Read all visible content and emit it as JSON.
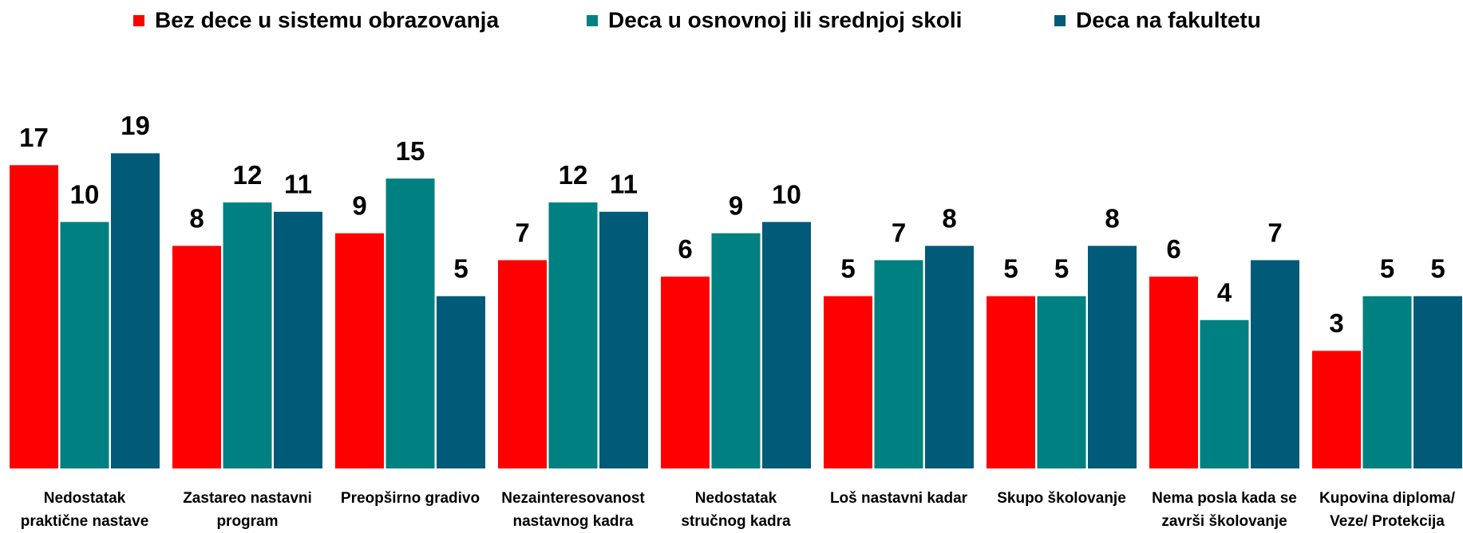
{
  "chart_data": {
    "type": "bar",
    "categories": [
      [
        "Nedostatak",
        "praktične nastave"
      ],
      [
        "Zastareo nastavni",
        "program"
      ],
      [
        "Preopširno gradivo"
      ],
      [
        "Nezainteresovanost",
        "nastavnog kadra"
      ],
      [
        "Nedostatak",
        "stručnog kadra"
      ],
      [
        "Loš nastavni kadar"
      ],
      [
        "Skupo školovanje"
      ],
      [
        "Nema posla kada se",
        "završi školovanje"
      ],
      [
        "Kupovina diploma/",
        "Veze/ Protekcija"
      ]
    ],
    "series": [
      {
        "name": "Bez dece u sistemu obrazovanja",
        "color": "#ff0000",
        "values": [
          17,
          8,
          9,
          7,
          6,
          5,
          5,
          6,
          3
        ]
      },
      {
        "name": "Deca u osnovnoj ili srednjoj skoli",
        "color": "#008080",
        "values": [
          10,
          12,
          15,
          12,
          9,
          7,
          5,
          4,
          5
        ]
      },
      {
        "name": "Deca na fakultetu",
        "color": "#005a78",
        "values": [
          19,
          11,
          5,
          11,
          10,
          8,
          8,
          7,
          5
        ]
      }
    ],
    "ylim": [
      1,
      30
    ],
    "yscale": "log",
    "legend": "top"
  }
}
